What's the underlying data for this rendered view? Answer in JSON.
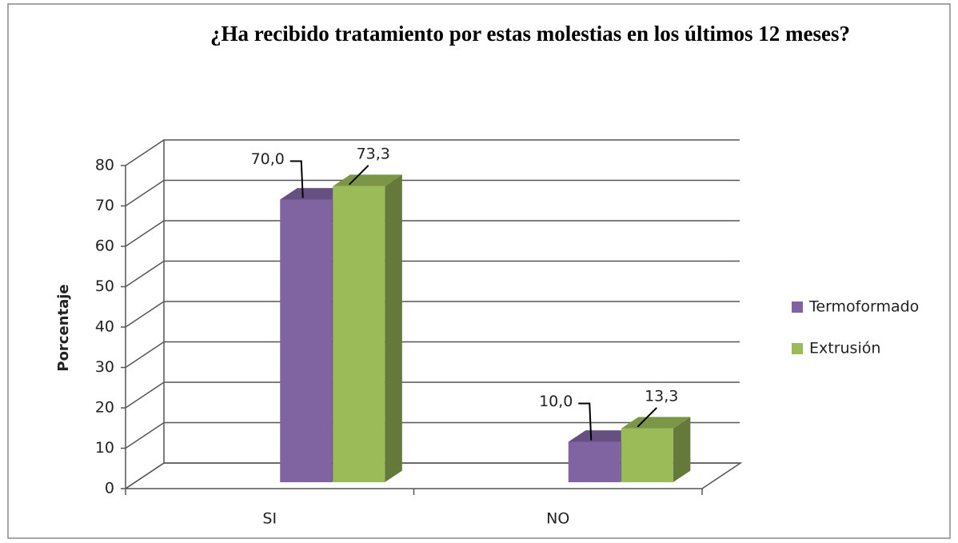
{
  "chart_data": {
    "type": "bar3d",
    "title": "¿Ha recibido tratamiento por estas molestias en los últimos 12 meses?",
    "ylabel": "Porcentaje",
    "categories": [
      "SI",
      "NO"
    ],
    "series": [
      {
        "name": "Termoformado",
        "color": "#8064a2",
        "values": [
          70.0,
          10.0
        ],
        "value_labels": [
          "70,0",
          "10,0"
        ]
      },
      {
        "name": "Extrusión",
        "color": "#9bbb59",
        "values": [
          73.3,
          13.3
        ],
        "value_labels": [
          "73,3",
          "13,3"
        ]
      }
    ],
    "ylim": [
      0,
      80
    ],
    "yticks": [
      0,
      10,
      20,
      30,
      40,
      50,
      60,
      70,
      80
    ],
    "grid": true,
    "legend": "right"
  }
}
